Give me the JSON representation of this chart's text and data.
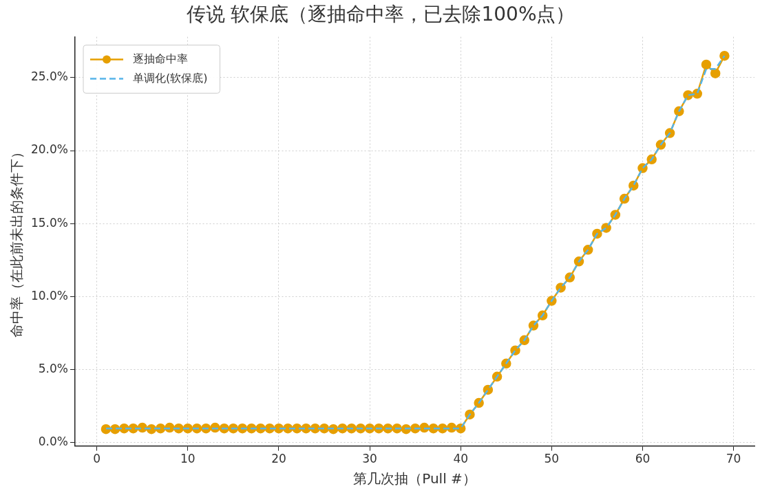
{
  "chart_data": {
    "type": "line",
    "title": "传说 软保底（逐抽命中率，已去除100%点）",
    "xlabel": "第几次抽（Pull #）",
    "ylabel": "命中率（在此前未出的条件下）",
    "x": [
      1,
      2,
      3,
      4,
      5,
      6,
      7,
      8,
      9,
      10,
      11,
      12,
      13,
      14,
      15,
      16,
      17,
      18,
      19,
      20,
      21,
      22,
      23,
      24,
      25,
      26,
      27,
      28,
      29,
      30,
      31,
      32,
      33,
      34,
      35,
      36,
      37,
      38,
      39,
      40,
      41,
      42,
      43,
      44,
      45,
      46,
      47,
      48,
      49,
      50,
      51,
      52,
      53,
      54,
      55,
      56,
      57,
      58,
      59,
      60,
      61,
      62,
      63,
      64,
      65,
      66,
      67,
      68,
      69
    ],
    "series": [
      {
        "name": "逐抽命中率",
        "color": "#e69f00",
        "marker": "circle",
        "line_style": "solid",
        "values": [
          0.9,
          0.9,
          0.95,
          0.95,
          1.0,
          0.9,
          0.95,
          1.0,
          0.95,
          0.95,
          0.95,
          0.95,
          1.0,
          0.95,
          0.95,
          0.95,
          0.95,
          0.95,
          0.95,
          0.95,
          0.95,
          0.95,
          0.95,
          0.95,
          0.95,
          0.9,
          0.95,
          0.95,
          0.95,
          0.95,
          0.95,
          0.95,
          0.95,
          0.9,
          0.95,
          1.0,
          0.95,
          0.95,
          1.0,
          0.95,
          1.9,
          2.7,
          3.6,
          4.5,
          5.4,
          6.3,
          7.0,
          8.0,
          8.7,
          9.7,
          10.6,
          11.3,
          12.4,
          13.2,
          14.3,
          14.7,
          15.6,
          16.7,
          17.6,
          18.8,
          19.4,
          20.4,
          21.2,
          22.7,
          23.8,
          23.9,
          25.9,
          25.3,
          26.5
        ]
      },
      {
        "name": "单调化(软保底)",
        "color": "#56b4e9",
        "marker": "none",
        "line_style": "dashed",
        "values": [
          0.95,
          0.95,
          0.95,
          0.95,
          0.95,
          0.95,
          0.95,
          0.95,
          0.95,
          0.95,
          0.95,
          0.95,
          0.95,
          0.95,
          0.95,
          0.95,
          0.95,
          0.95,
          0.95,
          0.95,
          0.95,
          0.95,
          0.95,
          0.95,
          0.95,
          0.95,
          0.95,
          0.95,
          0.95,
          0.95,
          0.95,
          0.95,
          0.95,
          0.95,
          0.95,
          0.95,
          0.95,
          0.95,
          0.95,
          0.95,
          1.9,
          2.7,
          3.6,
          4.5,
          5.4,
          6.3,
          7.0,
          8.0,
          8.7,
          9.7,
          10.6,
          11.3,
          12.4,
          13.2,
          14.3,
          14.7,
          15.6,
          16.7,
          17.6,
          18.8,
          19.4,
          20.4,
          21.2,
          22.7,
          23.8,
          23.9,
          25.6,
          25.6,
          26.5
        ]
      }
    ],
    "xlim": [
      -2.4,
      72.3
    ],
    "xticks": [
      0,
      10,
      20,
      30,
      40,
      50,
      60,
      70
    ],
    "ylim": [
      -0.25,
      27.8
    ],
    "yticks": [
      {
        "value": 0,
        "label": "0.0%"
      },
      {
        "value": 5,
        "label": "5.0%"
      },
      {
        "value": 10,
        "label": "10.0%"
      },
      {
        "value": 15,
        "label": "15.0%"
      },
      {
        "value": 20,
        "label": "20.0%"
      },
      {
        "value": 25,
        "label": "25.0%"
      }
    ],
    "grid": true,
    "legend": "top left"
  }
}
